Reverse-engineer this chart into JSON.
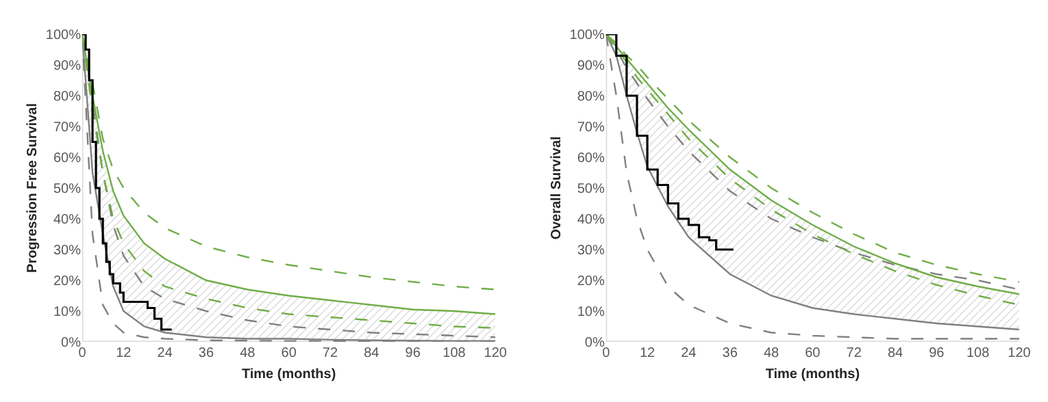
{
  "chart_data": [
    {
      "type": "line",
      "xlabel": "Time (months)",
      "ylabel": "Progression Free Survival",
      "xlim": [
        0,
        120
      ],
      "ylim": [
        0,
        100
      ],
      "xticks": [
        0,
        12,
        24,
        36,
        48,
        60,
        72,
        84,
        96,
        108,
        120
      ],
      "yticks": [
        {
          "value": 0,
          "label": "0%"
        },
        {
          "value": 10,
          "label": "10%"
        },
        {
          "value": 20,
          "label": "20%"
        },
        {
          "value": 30,
          "label": "30%"
        },
        {
          "value": 40,
          "label": "40%"
        },
        {
          "value": 50,
          "label": "50%"
        },
        {
          "value": 60,
          "label": "60%"
        },
        {
          "value": 70,
          "label": "70%"
        },
        {
          "value": 80,
          "label": "80%"
        },
        {
          "value": 90,
          "label": "90%"
        },
        {
          "value": 100,
          "label": "100%"
        }
      ],
      "x": [
        0,
        3,
        6,
        9,
        12,
        18,
        24,
        36,
        48,
        60,
        72,
        84,
        96,
        108,
        120
      ],
      "series": [
        {
          "color": "#808080",
          "line_style": "dashed",
          "values": [
            100,
            35,
            12,
            6,
            3,
            1.5,
            1,
            0.5,
            0.4,
            0.3,
            0.3,
            0.2,
            0.2,
            0.2,
            0.2
          ]
        },
        {
          "color": "#808080",
          "line_style": "dashed",
          "values": [
            100,
            78,
            55,
            38,
            28,
            18,
            14,
            10,
            7,
            5,
            4,
            3,
            2.5,
            2,
            1.5
          ]
        },
        {
          "color": "#808080",
          "values": [
            100,
            55,
            35,
            18,
            10,
            5,
            3,
            1.5,
            1,
            1,
            0.7,
            0.5,
            0.4,
            0.3,
            0.3
          ],
          "lower": [
            100,
            55,
            35,
            18,
            10,
            5,
            3,
            1.5,
            1,
            1,
            0.7,
            0.5,
            0.4,
            0.3,
            0.3
          ],
          "upper": [
            100,
            80,
            62,
            49,
            41,
            32,
            27,
            20,
            17,
            15,
            13.5,
            12,
            10.5,
            10,
            9
          ]
        },
        {
          "color": "#70ad47",
          "line_style": "dashed",
          "values": [
            100,
            75,
            55,
            40,
            32,
            23,
            18,
            14,
            11,
            9,
            8,
            7,
            6,
            5,
            4.5
          ]
        },
        {
          "color": "#70ad47",
          "line_style": "dashed",
          "values": [
            100,
            84,
            66,
            56,
            50,
            42,
            37,
            31,
            27.5,
            25,
            23,
            21,
            19.5,
            18,
            17
          ]
        },
        {
          "color": "#70ad47",
          "values": [
            100,
            80,
            62,
            49,
            41,
            32,
            27,
            20,
            17,
            15,
            13.5,
            12,
            10.5,
            10,
            9
          ]
        },
        {
          "type": "step",
          "color": "#000000",
          "x": [
            0,
            1,
            2,
            3,
            4,
            5,
            6,
            7,
            8,
            9,
            11,
            12,
            19,
            21,
            23,
            26
          ],
          "values": [
            100,
            95,
            85,
            65,
            50,
            40,
            32,
            26,
            22,
            19,
            16,
            13,
            11,
            7.5,
            4,
            4
          ]
        }
      ]
    },
    {
      "type": "line",
      "xlabel": "Time (months)",
      "ylabel": "Overall Survival",
      "xlim": [
        0,
        120
      ],
      "ylim": [
        0,
        100
      ],
      "xticks": [
        0,
        12,
        24,
        36,
        48,
        60,
        72,
        84,
        96,
        108,
        120
      ],
      "yticks": [
        {
          "value": 0,
          "label": "0%"
        },
        {
          "value": 10,
          "label": "10%"
        },
        {
          "value": 20,
          "label": "20%"
        },
        {
          "value": 30,
          "label": "30%"
        },
        {
          "value": 40,
          "label": "40%"
        },
        {
          "value": 50,
          "label": "50%"
        },
        {
          "value": 60,
          "label": "60%"
        },
        {
          "value": 70,
          "label": "70%"
        },
        {
          "value": 80,
          "label": "80%"
        },
        {
          "value": 90,
          "label": "90%"
        },
        {
          "value": 100,
          "label": "100%"
        }
      ],
      "x": [
        0,
        3,
        6,
        9,
        12,
        18,
        24,
        36,
        48,
        60,
        72,
        84,
        96,
        108,
        120
      ],
      "series": [
        {
          "color": "#808080",
          "line_style": "dashed",
          "values": [
            100,
            80,
            55,
            40,
            30,
            18,
            12,
            6,
            3,
            2,
            1.5,
            1,
            1,
            1,
            1
          ]
        },
        {
          "color": "#808080",
          "line_style": "dashed",
          "values": [
            100,
            95,
            89,
            84,
            79,
            70,
            62,
            49,
            40,
            34,
            29,
            25,
            22,
            20,
            17
          ]
        },
        {
          "color": "#808080",
          "values": [
            100,
            93,
            80,
            68,
            57,
            44,
            34,
            22,
            15,
            11,
            9,
            7.5,
            6,
            5,
            4
          ],
          "lower": [
            100,
            93,
            80,
            68,
            57,
            44,
            34,
            22,
            15,
            11,
            9,
            7.5,
            6,
            5,
            4
          ],
          "upper": [
            100,
            96,
            92,
            88,
            84,
            76,
            69,
            56,
            46,
            38,
            31,
            25.5,
            21,
            18,
            15.5
          ]
        },
        {
          "color": "#70ad47",
          "line_style": "dashed",
          "values": [
            100,
            95,
            91,
            86,
            82,
            74,
            66,
            53,
            43,
            35,
            28.5,
            23,
            18.5,
            15,
            12
          ]
        },
        {
          "color": "#70ad47",
          "line_style": "dashed",
          "values": [
            100,
            97,
            93,
            90,
            86,
            79,
            72,
            60,
            50,
            42,
            35,
            29,
            25,
            22,
            19.5
          ]
        },
        {
          "color": "#70ad47",
          "values": [
            100,
            96,
            92,
            88,
            84,
            76,
            69,
            56,
            46,
            38,
            31,
            25.5,
            21,
            18,
            15.5
          ]
        },
        {
          "type": "step",
          "color": "#000000",
          "x": [
            0,
            3,
            6,
            9,
            12,
            15,
            18,
            21,
            24,
            27,
            30,
            32,
            37
          ],
          "values": [
            100,
            93,
            80,
            67,
            56,
            51,
            45,
            40,
            38,
            34,
            33,
            30,
            30
          ]
        }
      ]
    }
  ]
}
